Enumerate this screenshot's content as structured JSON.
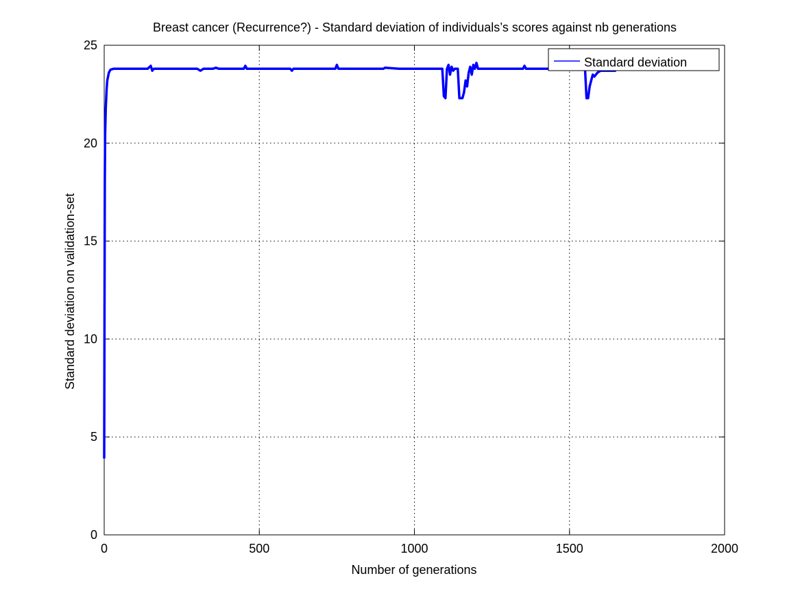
{
  "chart_data": {
    "type": "line",
    "title": "Breast cancer (Recurrence?) - Standard deviation of individuals’s scores against nb generations",
    "xlabel": "Number of generations",
    "ylabel": "Standard deviation on validation-set",
    "xlim": [
      0,
      2000
    ],
    "ylim": [
      0,
      25
    ],
    "x_ticks": [
      0,
      500,
      1000,
      1500,
      2000
    ],
    "y_ticks": [
      0,
      5,
      10,
      15,
      20,
      25
    ],
    "grid": true,
    "legend_placement": "top-right",
    "series": [
      {
        "name": "Standard deviation",
        "color": "#0000ff",
        "x": [
          0,
          1,
          2,
          3,
          5,
          8,
          10,
          15,
          20,
          30,
          40,
          50,
          60,
          80,
          100,
          120,
          140,
          150,
          155,
          160,
          180,
          200,
          250,
          300,
          310,
          320,
          350,
          360,
          370,
          400,
          450,
          455,
          460,
          500,
          550,
          600,
          605,
          610,
          650,
          700,
          745,
          750,
          755,
          800,
          850,
          900,
          905,
          950,
          1000,
          1050,
          1090,
          1095,
          1100,
          1105,
          1110,
          1115,
          1120,
          1125,
          1130,
          1140,
          1145,
          1150,
          1155,
          1160,
          1165,
          1170,
          1175,
          1180,
          1185,
          1190,
          1195,
          1200,
          1205,
          1210,
          1250,
          1300,
          1350,
          1355,
          1360,
          1400,
          1450,
          1500,
          1550,
          1555,
          1560,
          1565,
          1570,
          1575,
          1580,
          1590,
          1600,
          1620,
          1640,
          1650
        ],
        "y": [
          3.9,
          12,
          18,
          20.5,
          21.8,
          22.8,
          23.2,
          23.6,
          23.75,
          23.8,
          23.8,
          23.8,
          23.8,
          23.8,
          23.8,
          23.8,
          23.8,
          23.95,
          23.7,
          23.8,
          23.8,
          23.8,
          23.8,
          23.8,
          23.7,
          23.8,
          23.8,
          23.85,
          23.8,
          23.8,
          23.8,
          23.95,
          23.8,
          23.8,
          23.8,
          23.8,
          23.7,
          23.8,
          23.8,
          23.8,
          23.8,
          24.0,
          23.8,
          23.8,
          23.8,
          23.8,
          23.85,
          23.8,
          23.8,
          23.8,
          23.8,
          22.4,
          22.3,
          23.8,
          24.0,
          23.5,
          23.9,
          23.7,
          23.8,
          23.8,
          22.3,
          22.3,
          22.3,
          22.6,
          23.2,
          22.9,
          23.6,
          23.9,
          23.5,
          24.0,
          23.8,
          24.1,
          23.8,
          23.8,
          23.8,
          23.8,
          23.8,
          23.95,
          23.8,
          23.8,
          23.8,
          23.8,
          23.8,
          22.3,
          22.3,
          22.9,
          23.2,
          23.5,
          23.4,
          23.6,
          23.7,
          23.7,
          23.7,
          23.7
        ]
      }
    ]
  }
}
